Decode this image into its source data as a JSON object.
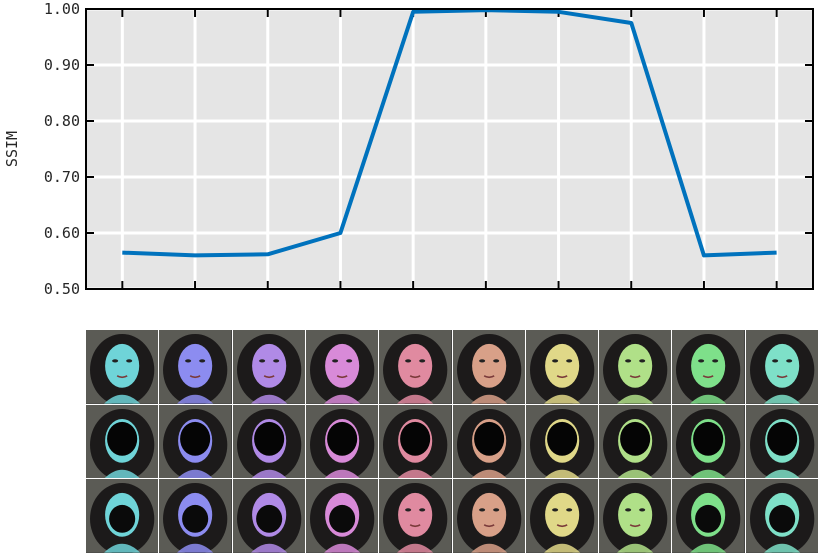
{
  "chart_data": {
    "type": "line",
    "title": "",
    "xlabel": "",
    "ylabel": "SSIM",
    "ylim": [
      0.5,
      1.0
    ],
    "yticks": [
      "0.50",
      "0.60",
      "0.70",
      "0.80",
      "0.90",
      "1.00"
    ],
    "x": [
      1,
      2,
      3,
      4,
      5,
      6,
      7,
      8,
      9,
      10
    ],
    "series": [
      {
        "values": [
          0.565,
          0.56,
          0.562,
          0.6,
          0.995,
          0.998,
          0.995,
          0.975,
          0.56,
          0.565
        ]
      }
    ],
    "grid": true,
    "line_color": "#0072BD",
    "background": "#E5E5E5"
  },
  "image_grid": {
    "rows": 3,
    "columns": 10,
    "tint_colors": [
      "#6fd4d8",
      "#8c8cf0",
      "#b08ae6",
      "#d88ad8",
      "#e08aa0",
      "#d8a088",
      "#e0d888",
      "#b0e088",
      "#7ee08a",
      "#7ee0c8"
    ],
    "row_types": [
      "full-face",
      "masked-face",
      "reconstructed-face"
    ]
  }
}
